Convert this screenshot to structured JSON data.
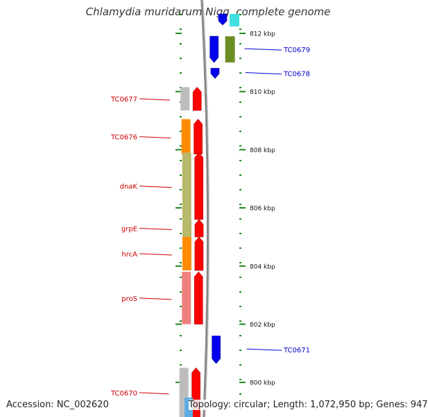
{
  "title": "Chlamydia muridarum Nigg, complete genome",
  "accession_text": "Accession: NC_002620",
  "topology_text": "Topology: circular; Length: 1,072,950 bp; Genes: 947",
  "kbp_ticks": [
    {
      "label": "812 kbp",
      "kbp": 812
    },
    {
      "label": "810 kbp",
      "kbp": 810
    },
    {
      "label": "808 kbp",
      "kbp": 808
    },
    {
      "label": "806 kbp",
      "kbp": 806
    },
    {
      "label": "804 kbp",
      "kbp": 804
    },
    {
      "label": "802 kbp",
      "kbp": 802
    },
    {
      "label": "800 kbp",
      "kbp": 800
    }
  ],
  "genes": [
    {
      "name": "TC0679",
      "strand": "forward",
      "start_kbp": 811.9,
      "end_kbp": 811.0,
      "color": "#0000ee",
      "label_color": "#0000cc",
      "cog_color": "#6b8e23"
    },
    {
      "name": "TC0678",
      "strand": "forward",
      "start_kbp": 810.8,
      "end_kbp": 810.45,
      "color": "#0000ee",
      "label_color": "#0000cc"
    },
    {
      "name": "TC0677",
      "strand": "reverse",
      "start_kbp": 810.15,
      "end_kbp": 809.35,
      "color": "#ff0000",
      "label_color": "#cc0000",
      "cog_color": "#bdbdbd"
    },
    {
      "name": "TC0676",
      "strand": "reverse",
      "start_kbp": 809.05,
      "end_kbp": 807.85,
      "color": "#ff0000",
      "label_color": "#cc0000",
      "cog_color": "#ff8c00"
    },
    {
      "name": "dnaK",
      "strand": "reverse",
      "start_kbp": 807.9,
      "end_kbp": 805.6,
      "color": "#ff0000",
      "label_color": "#cc0000",
      "cog_color": "#b8b86b"
    },
    {
      "name": "grpE",
      "strand": "reverse",
      "start_kbp": 805.6,
      "end_kbp": 805.0,
      "color": "#ff0000",
      "label_color": "#cc0000",
      "cog_color": "#b8b86b"
    },
    {
      "name": "hrcA",
      "strand": "reverse",
      "start_kbp": 805.0,
      "end_kbp": 803.85,
      "color": "#ff0000",
      "label_color": "#cc0000",
      "cog_color": "#ff8c00"
    },
    {
      "name": "proS",
      "strand": "reverse",
      "start_kbp": 803.8,
      "end_kbp": 802.0,
      "color": "#ff0000",
      "label_color": "#cc0000",
      "cog_color": "#f08080"
    },
    {
      "name": "TC0671",
      "strand": "forward",
      "start_kbp": 801.6,
      "end_kbp": 800.65,
      "color": "#0000ee",
      "label_color": "#0000cc"
    },
    {
      "name": "TC0670",
      "strand": "reverse",
      "start_kbp": 800.5,
      "end_kbp": 798.8,
      "color": "#ff0000",
      "label_color": "#cc0000",
      "cog_color": "#bdbdbd"
    }
  ],
  "colors": {
    "backbone": "#888888",
    "tick": "#1a8a1a",
    "forward_extra_cog": "#40e0e0",
    "reverse_extra_cog": "#5dade2"
  }
}
